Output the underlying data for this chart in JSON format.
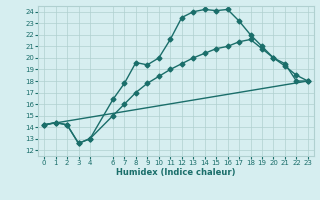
{
  "xlabel": "Humidex (Indice chaleur)",
  "xlim": [
    -0.5,
    23.5
  ],
  "ylim": [
    11.5,
    24.5
  ],
  "yticks": [
    12,
    13,
    14,
    15,
    16,
    17,
    18,
    19,
    20,
    21,
    22,
    23,
    24
  ],
  "xticks": [
    0,
    1,
    2,
    3,
    4,
    6,
    7,
    8,
    9,
    10,
    11,
    12,
    13,
    14,
    15,
    16,
    17,
    18,
    19,
    20,
    21,
    22,
    23
  ],
  "bg_color": "#d6eef0",
  "grid_color": "#b0d0d0",
  "line_color": "#1a6e6a",
  "line1_x": [
    0,
    1,
    2,
    3,
    4,
    6,
    7,
    8,
    9,
    10,
    11,
    12,
    13,
    14,
    15,
    16,
    17,
    18,
    19,
    20,
    21,
    22,
    23
  ],
  "line1_y": [
    14.2,
    14.4,
    14.2,
    12.6,
    13.0,
    16.4,
    17.8,
    19.6,
    19.4,
    20.0,
    21.6,
    23.5,
    24.0,
    24.2,
    24.1,
    24.2,
    23.2,
    22.0,
    21.0,
    20.0,
    19.5,
    18.0,
    18.0
  ],
  "line2_x": [
    0,
    1,
    2,
    3,
    4,
    6,
    7,
    8,
    9,
    10,
    11,
    12,
    13,
    14,
    15,
    16,
    17,
    18,
    19,
    20,
    21,
    22,
    23
  ],
  "line2_y": [
    14.2,
    14.4,
    14.2,
    12.6,
    13.0,
    15.0,
    16.0,
    17.0,
    17.8,
    18.4,
    19.0,
    19.5,
    20.0,
    20.4,
    20.8,
    21.0,
    21.4,
    21.6,
    20.8,
    20.0,
    19.3,
    18.5,
    18.0
  ],
  "line3_x": [
    0,
    23
  ],
  "line3_y": [
    14.2,
    18.0
  ],
  "marker": "D",
  "markersize": 2.5,
  "linewidth": 1.0,
  "tick_fontsize": 5.0,
  "xlabel_fontsize": 6.0
}
